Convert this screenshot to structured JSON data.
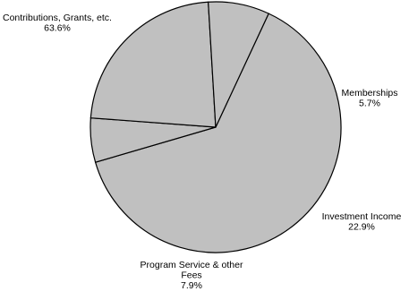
{
  "chart_data": {
    "type": "pie",
    "title": "",
    "slices": [
      {
        "label": "Contributions, Grants, etc.",
        "value": 63.6,
        "value_label": "63.6%"
      },
      {
        "label": "Memberships",
        "value": 5.7,
        "value_label": "5.7%"
      },
      {
        "label": "Investment Income",
        "value": 22.9,
        "value_label": "22.9%"
      },
      {
        "label": "Program Service & other Fees",
        "value": 7.9,
        "value_label": "7.9%"
      }
    ],
    "colors": {
      "fill": "#c0c0c0",
      "stroke": "#000000"
    },
    "legend": "none"
  }
}
